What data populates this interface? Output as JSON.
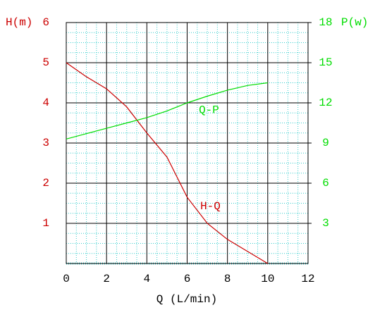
{
  "chart_data": {
    "type": "line",
    "x_label": "Q (L/min)",
    "y_label": "H(m)",
    "y2_label": "P(w)",
    "x": [
      0,
      1,
      2,
      3,
      4,
      5,
      6,
      7,
      8,
      9,
      10
    ],
    "series": [
      {
        "name": "H-Q",
        "color": "#cc0000",
        "values": [
          5,
          4.65,
          4.35,
          3.9,
          3.25,
          2.65,
          1.65,
          1.0,
          0.6,
          0.3,
          0
        ]
      },
      {
        "name": "Q-P",
        "color": "#00dd00",
        "axis": "y2",
        "values": [
          9.3,
          9.7,
          10.1,
          10.5,
          10.9,
          11.4,
          12,
          12.5,
          12.95,
          13.3,
          13.5
        ]
      }
    ],
    "xlim": [
      0,
      12
    ],
    "xticks": [
      0,
      2,
      4,
      6,
      8,
      10,
      12
    ],
    "ylim": [
      0,
      6
    ],
    "yticks": [
      1,
      2,
      3,
      4,
      5,
      6
    ],
    "y2lim": [
      0,
      18
    ],
    "y2ticks": [
      3,
      6,
      9,
      12,
      15,
      18
    ],
    "grid": true
  }
}
